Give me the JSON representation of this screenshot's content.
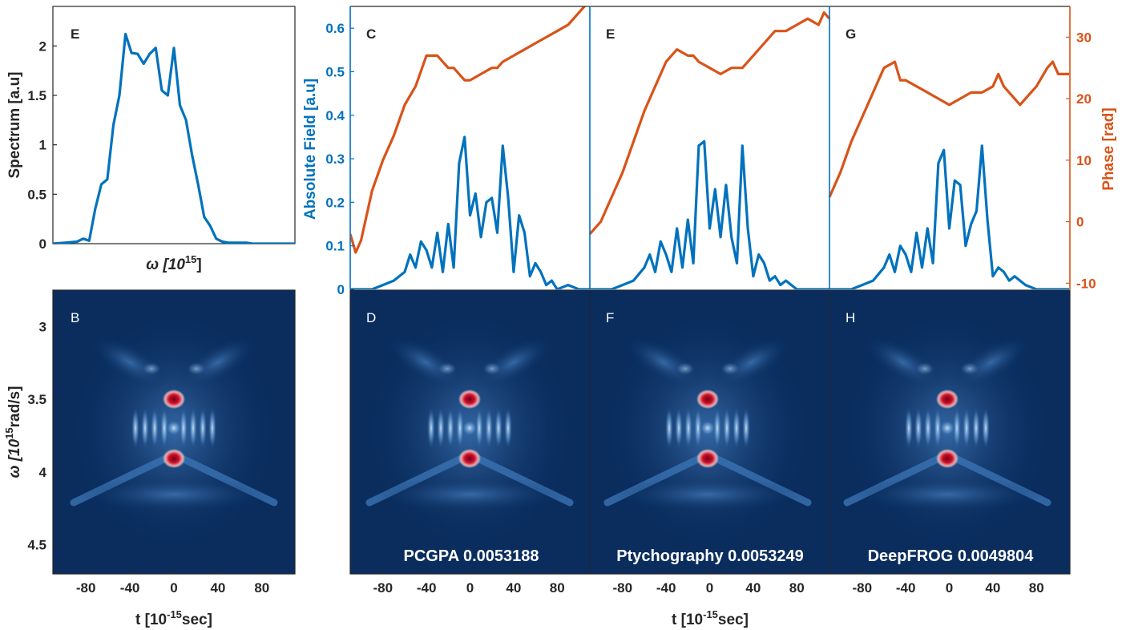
{
  "colors": {
    "blue": "#0072BD",
    "orange": "#D95319",
    "axis": "#262626",
    "map_background": "#0a2d5e"
  },
  "chart_data": [
    {
      "type": "line",
      "panel": "spectrum",
      "label": "E",
      "xlabel_parts": [
        "ω [10",
        "15",
        "]"
      ],
      "ylabel": "Spectrum [a.u]",
      "xlim": [
        2.7,
        4.7
      ],
      "ylim": [
        0,
        2.4
      ],
      "yticks": [
        "0",
        "0.5",
        "1",
        "1.5",
        "2"
      ],
      "series": [
        {
          "x": [
            2.7,
            2.8,
            2.9,
            2.95,
            3.0,
            3.05,
            3.1,
            3.15,
            3.2,
            3.25,
            3.3,
            3.35,
            3.4,
            3.45,
            3.5,
            3.55,
            3.6,
            3.65,
            3.7,
            3.75,
            3.8,
            3.85,
            3.9,
            3.95,
            4.0,
            4.05,
            4.1,
            4.15,
            4.2,
            4.25,
            4.3,
            4.35,
            4.4,
            4.5,
            4.6,
            4.7
          ],
          "y": [
            0.0,
            0.01,
            0.02,
            0.05,
            0.03,
            0.35,
            0.6,
            0.65,
            1.2,
            1.5,
            2.12,
            1.93,
            1.92,
            1.82,
            1.92,
            1.98,
            1.55,
            1.5,
            1.98,
            1.4,
            1.25,
            0.9,
            0.6,
            0.27,
            0.18,
            0.05,
            0.02,
            0.01,
            0.01,
            0.01,
            0.01,
            0.0,
            0.0,
            0.0,
            0.0,
            0.0
          ]
        }
      ]
    },
    {
      "type": "heatmap",
      "panel": "measured-trace",
      "label": "B",
      "xlabel_parts": [
        "t [10",
        "-15",
        "sec]"
      ],
      "ylabel_parts": [
        "ω [10",
        "15",
        "rad/s]"
      ],
      "xlim": [
        -110,
        110
      ],
      "ylim": [
        2.75,
        4.7
      ],
      "xticks": [
        "-80",
        "-40",
        "0",
        "40",
        "80"
      ],
      "yticks": [
        "3",
        "3.5",
        "4",
        "4.5"
      ]
    },
    {
      "type": "line",
      "panel": "retrieved-pulses",
      "xlim": [
        -110,
        110
      ],
      "left_axis": {
        "label": "Absolute Field [a.u]",
        "ylim": [
          0,
          0.65
        ],
        "ticks": [
          "0",
          "0.1",
          "0.2",
          "0.3",
          "0.4",
          "0.5",
          "0.6"
        ]
      },
      "right_axis": {
        "label": "Phase [rad]",
        "ylim": [
          -11,
          35
        ],
        "ticks": [
          "-10",
          "0",
          "10",
          "20",
          "30"
        ]
      },
      "xticks": [
        "-80",
        "-40",
        "0",
        "40",
        "80"
      ],
      "xlabel_parts": [
        "t [10",
        "-15",
        "sec]"
      ],
      "panels": [
        {
          "label": "C",
          "amplitude": {
            "x": [
              -110,
              -100,
              -90,
              -80,
              -70,
              -60,
              -55,
              -50,
              -45,
              -40,
              -35,
              -30,
              -25,
              -20,
              -15,
              -10,
              -5,
              0,
              5,
              10,
              15,
              20,
              25,
              30,
              35,
              40,
              45,
              50,
              55,
              60,
              65,
              70,
              75,
              80,
              90,
              100,
              110
            ],
            "y": [
              0.0,
              0.0,
              0.0,
              0.01,
              0.02,
              0.04,
              0.08,
              0.05,
              0.11,
              0.09,
              0.05,
              0.13,
              0.04,
              0.15,
              0.05,
              0.29,
              0.35,
              0.17,
              0.22,
              0.12,
              0.2,
              0.21,
              0.13,
              0.33,
              0.21,
              0.04,
              0.17,
              0.13,
              0.03,
              0.06,
              0.04,
              0.01,
              0.02,
              0.0,
              0.01,
              0.0,
              0.0
            ]
          },
          "phase": {
            "x": [
              -110,
              -105,
              -100,
              -90,
              -80,
              -70,
              -60,
              -50,
              -40,
              -30,
              -20,
              -15,
              -10,
              -5,
              0,
              10,
              20,
              25,
              30,
              40,
              50,
              60,
              70,
              80,
              90,
              100,
              110
            ],
            "y": [
              -2,
              -5,
              -3,
              5,
              10,
              14,
              19,
              22,
              27,
              27,
              25,
              25,
              24,
              23,
              23,
              24,
              25,
              25,
              26,
              27,
              28,
              29,
              30,
              31,
              32,
              34,
              36
            ]
          }
        },
        {
          "label": "E",
          "amplitude": {
            "x": [
              -110,
              -100,
              -90,
              -80,
              -70,
              -60,
              -55,
              -50,
              -45,
              -40,
              -35,
              -30,
              -25,
              -20,
              -15,
              -10,
              -5,
              0,
              5,
              10,
              15,
              20,
              25,
              30,
              35,
              40,
              45,
              50,
              55,
              60,
              65,
              70,
              80,
              90,
              100,
              110
            ],
            "y": [
              0.0,
              0.0,
              0.0,
              0.01,
              0.02,
              0.05,
              0.08,
              0.04,
              0.11,
              0.08,
              0.04,
              0.14,
              0.05,
              0.16,
              0.06,
              0.33,
              0.34,
              0.14,
              0.23,
              0.12,
              0.24,
              0.12,
              0.06,
              0.33,
              0.14,
              0.03,
              0.08,
              0.06,
              0.02,
              0.03,
              0.01,
              0.02,
              0.0,
              0.0,
              0.0,
              0.0
            ]
          },
          "phase": {
            "x": [
              -110,
              -100,
              -90,
              -80,
              -70,
              -60,
              -50,
              -40,
              -30,
              -20,
              -15,
              -10,
              0,
              10,
              20,
              25,
              30,
              40,
              50,
              60,
              70,
              80,
              90,
              100,
              105,
              110
            ],
            "y": [
              -2,
              0,
              4,
              8,
              13,
              18,
              22,
              26,
              28,
              27,
              27,
              26,
              25,
              24,
              25,
              25,
              25,
              27,
              29,
              31,
              31,
              32,
              33,
              32,
              34,
              33
            ]
          }
        },
        {
          "label": "G",
          "amplitude": {
            "x": [
              -110,
              -100,
              -90,
              -80,
              -70,
              -60,
              -55,
              -50,
              -45,
              -40,
              -35,
              -30,
              -25,
              -20,
              -15,
              -10,
              -5,
              0,
              5,
              10,
              15,
              20,
              25,
              30,
              35,
              40,
              45,
              50,
              55,
              60,
              70,
              80,
              90,
              100,
              110
            ],
            "y": [
              0.0,
              0.0,
              0.0,
              0.01,
              0.02,
              0.05,
              0.08,
              0.04,
              0.1,
              0.08,
              0.04,
              0.13,
              0.05,
              0.14,
              0.06,
              0.29,
              0.32,
              0.14,
              0.25,
              0.24,
              0.1,
              0.15,
              0.18,
              0.33,
              0.16,
              0.03,
              0.05,
              0.04,
              0.02,
              0.03,
              0.01,
              0.0,
              0.0,
              0.0,
              0.0
            ]
          },
          "phase": {
            "x": [
              -110,
              -100,
              -90,
              -80,
              -70,
              -60,
              -50,
              -45,
              -40,
              -30,
              -20,
              -10,
              0,
              10,
              20,
              30,
              40,
              45,
              50,
              60,
              65,
              70,
              80,
              90,
              95,
              100,
              110
            ],
            "y": [
              4,
              8,
              13,
              17,
              21,
              25,
              26,
              23,
              23,
              22,
              21,
              20,
              19,
              20,
              21,
              21,
              22,
              24,
              22,
              20,
              19,
              20,
              22,
              25,
              26,
              24,
              24
            ]
          }
        }
      ]
    },
    {
      "type": "heatmap",
      "panel": "retrieved-traces",
      "xticks": [
        "-80",
        "-40",
        "0",
        "40",
        "80"
      ],
      "panels": [
        {
          "label": "D",
          "caption": "PCGPA 0.0053188"
        },
        {
          "label": "F",
          "caption": "Ptychography 0.0053249"
        },
        {
          "label": "H",
          "caption": "DeepFROG 0.0049804"
        }
      ]
    }
  ]
}
